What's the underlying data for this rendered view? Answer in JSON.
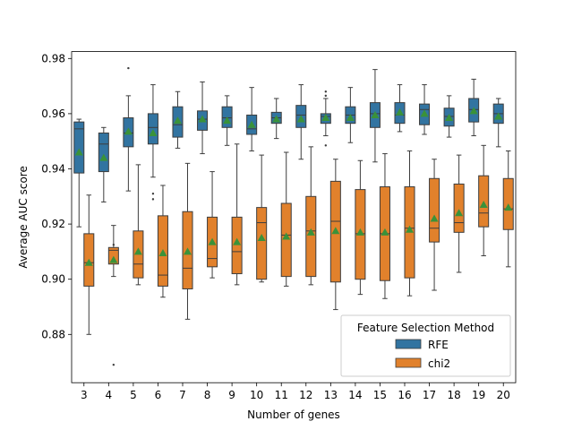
{
  "chart_data": {
    "type": "box",
    "title": "",
    "xlabel": "Number of genes",
    "ylabel": "Average AUC score",
    "ylim": [
      0.8625,
      0.9825
    ],
    "yticks": [
      0.88,
      0.9,
      0.92,
      0.94,
      0.96,
      0.98
    ],
    "ytick_labels": [
      "0.88",
      "0.90",
      "0.92",
      "0.94",
      "0.96",
      "0.98"
    ],
    "categories": [
      "3",
      "4",
      "5",
      "6",
      "7",
      "8",
      "9",
      "10",
      "11",
      "12",
      "13",
      "14",
      "15",
      "16",
      "17",
      "18",
      "19",
      "20"
    ],
    "grid": false,
    "legend": {
      "title": "Feature Selection Method",
      "position": "lower-right",
      "entries": [
        "RFE",
        "chi2"
      ]
    },
    "colors": {
      "RFE": "#3274a1",
      "chi2": "#e1812c",
      "mean_marker": "#3a923a",
      "whisker": "#3d3d3d"
    },
    "series": [
      {
        "name": "RFE",
        "boxes": [
          {
            "whislo": 0.919,
            "q1": 0.9385,
            "med": 0.9545,
            "q3": 0.957,
            "whishi": 0.958,
            "mean": 0.946,
            "fliers": []
          },
          {
            "whislo": 0.928,
            "q1": 0.939,
            "med": 0.949,
            "q3": 0.953,
            "whishi": 0.955,
            "mean": 0.944,
            "fliers": []
          },
          {
            "whislo": 0.932,
            "q1": 0.948,
            "med": 0.953,
            "q3": 0.9585,
            "whishi": 0.9665,
            "mean": 0.9535,
            "fliers": [
              0.9765
            ]
          },
          {
            "whislo": 0.937,
            "q1": 0.949,
            "med": 0.955,
            "q3": 0.96,
            "whishi": 0.9705,
            "mean": 0.953,
            "fliers": [
              0.931,
              0.929
            ]
          },
          {
            "whislo": 0.9475,
            "q1": 0.9515,
            "med": 0.956,
            "q3": 0.9625,
            "whishi": 0.968,
            "mean": 0.9575,
            "fliers": []
          },
          {
            "whislo": 0.9455,
            "q1": 0.954,
            "med": 0.958,
            "q3": 0.961,
            "whishi": 0.9715,
            "mean": 0.958,
            "fliers": []
          },
          {
            "whislo": 0.9485,
            "q1": 0.955,
            "med": 0.9585,
            "q3": 0.9625,
            "whishi": 0.9665,
            "mean": 0.9575,
            "fliers": []
          },
          {
            "whislo": 0.9465,
            "q1": 0.9525,
            "med": 0.9545,
            "q3": 0.9595,
            "whishi": 0.9695,
            "mean": 0.956,
            "fliers": []
          },
          {
            "whislo": 0.951,
            "q1": 0.9565,
            "med": 0.9585,
            "q3": 0.9605,
            "whishi": 0.9655,
            "mean": 0.958,
            "fliers": []
          },
          {
            "whislo": 0.9435,
            "q1": 0.955,
            "med": 0.9595,
            "q3": 0.963,
            "whishi": 0.9705,
            "mean": 0.958,
            "fliers": []
          },
          {
            "whislo": 0.952,
            "q1": 0.9565,
            "med": 0.959,
            "q3": 0.96,
            "whishi": 0.9655,
            "mean": 0.9585,
            "fliers": [
              0.968,
              0.9665,
              0.9485
            ]
          },
          {
            "whislo": 0.9495,
            "q1": 0.9565,
            "med": 0.9595,
            "q3": 0.9625,
            "whishi": 0.9695,
            "mean": 0.9585,
            "fliers": []
          },
          {
            "whislo": 0.9425,
            "q1": 0.955,
            "med": 0.96,
            "q3": 0.964,
            "whishi": 0.976,
            "mean": 0.9595,
            "fliers": []
          },
          {
            "whislo": 0.9535,
            "q1": 0.9565,
            "med": 0.9595,
            "q3": 0.964,
            "whishi": 0.9705,
            "mean": 0.9605,
            "fliers": []
          },
          {
            "whislo": 0.9525,
            "q1": 0.956,
            "med": 0.9615,
            "q3": 0.9635,
            "whishi": 0.9705,
            "mean": 0.96,
            "fliers": []
          },
          {
            "whislo": 0.9515,
            "q1": 0.9555,
            "med": 0.959,
            "q3": 0.962,
            "whishi": 0.9665,
            "mean": 0.9585,
            "fliers": []
          },
          {
            "whislo": 0.952,
            "q1": 0.957,
            "med": 0.9615,
            "q3": 0.9655,
            "whishi": 0.9725,
            "mean": 0.961,
            "fliers": []
          },
          {
            "whislo": 0.948,
            "q1": 0.9565,
            "med": 0.96,
            "q3": 0.9635,
            "whishi": 0.9655,
            "mean": 0.959,
            "fliers": []
          }
        ]
      },
      {
        "name": "chi2",
        "boxes": [
          {
            "whislo": 0.88,
            "q1": 0.8975,
            "med": 0.906,
            "q3": 0.9165,
            "whishi": 0.9305,
            "mean": 0.906,
            "fliers": []
          },
          {
            "whislo": 0.901,
            "q1": 0.9055,
            "med": 0.9105,
            "q3": 0.9115,
            "whishi": 0.9195,
            "mean": 0.907,
            "fliers": [
              0.9125,
              0.869
            ]
          },
          {
            "whislo": 0.898,
            "q1": 0.9005,
            "med": 0.9055,
            "q3": 0.9175,
            "whishi": 0.9415,
            "mean": 0.91,
            "fliers": []
          },
          {
            "whislo": 0.8935,
            "q1": 0.8975,
            "med": 0.9015,
            "q3": 0.923,
            "whishi": 0.934,
            "mean": 0.9095,
            "fliers": []
          },
          {
            "whislo": 0.8855,
            "q1": 0.8965,
            "med": 0.904,
            "q3": 0.9245,
            "whishi": 0.942,
            "mean": 0.91,
            "fliers": []
          },
          {
            "whislo": 0.9005,
            "q1": 0.9045,
            "med": 0.9075,
            "q3": 0.9225,
            "whishi": 0.939,
            "mean": 0.9135,
            "fliers": []
          },
          {
            "whislo": 0.898,
            "q1": 0.902,
            "med": 0.91,
            "q3": 0.9225,
            "whishi": 0.949,
            "mean": 0.9135,
            "fliers": []
          },
          {
            "whislo": 0.899,
            "q1": 0.9,
            "med": 0.9205,
            "q3": 0.926,
            "whishi": 0.945,
            "mean": 0.915,
            "fliers": []
          },
          {
            "whislo": 0.8975,
            "q1": 0.901,
            "med": 0.916,
            "q3": 0.9275,
            "whishi": 0.946,
            "mean": 0.9155,
            "fliers": []
          },
          {
            "whislo": 0.898,
            "q1": 0.901,
            "med": 0.9175,
            "q3": 0.93,
            "whishi": 0.948,
            "mean": 0.917,
            "fliers": []
          },
          {
            "whislo": 0.889,
            "q1": 0.899,
            "med": 0.921,
            "q3": 0.9355,
            "whishi": 0.9435,
            "mean": 0.9175,
            "fliers": []
          },
          {
            "whislo": 0.8945,
            "q1": 0.9,
            "med": 0.9165,
            "q3": 0.9325,
            "whishi": 0.943,
            "mean": 0.917,
            "fliers": []
          },
          {
            "whislo": 0.893,
            "q1": 0.8995,
            "med": 0.9165,
            "q3": 0.9335,
            "whishi": 0.9455,
            "mean": 0.917,
            "fliers": []
          },
          {
            "whislo": 0.894,
            "q1": 0.9005,
            "med": 0.9185,
            "q3": 0.9335,
            "whishi": 0.9465,
            "mean": 0.918,
            "fliers": []
          },
          {
            "whislo": 0.896,
            "q1": 0.9135,
            "med": 0.9185,
            "q3": 0.9365,
            "whishi": 0.9435,
            "mean": 0.922,
            "fliers": []
          },
          {
            "whislo": 0.9025,
            "q1": 0.917,
            "med": 0.9205,
            "q3": 0.9345,
            "whishi": 0.945,
            "mean": 0.924,
            "fliers": []
          },
          {
            "whislo": 0.9085,
            "q1": 0.919,
            "med": 0.924,
            "q3": 0.9375,
            "whishi": 0.9485,
            "mean": 0.927,
            "fliers": []
          },
          {
            "whislo": 0.9045,
            "q1": 0.918,
            "med": 0.9255,
            "q3": 0.9365,
            "whishi": 0.9465,
            "mean": 0.926,
            "fliers": []
          }
        ]
      }
    ]
  }
}
